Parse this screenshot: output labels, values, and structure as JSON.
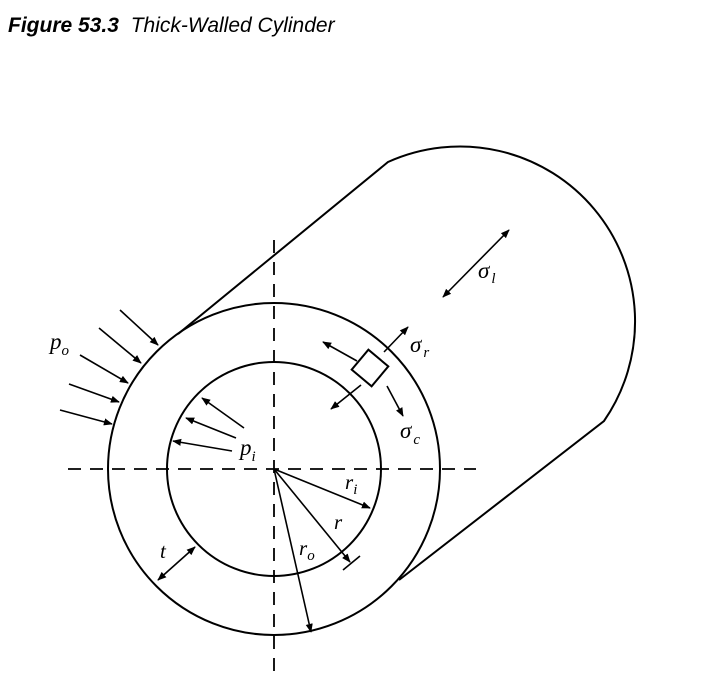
{
  "figure": {
    "number": "Figure 53.3",
    "title": "Thick-Walled Cylinder"
  },
  "labels": {
    "p_o": {
      "main": "p",
      "sub": "o"
    },
    "p_i": {
      "main": "p",
      "sub": "i"
    },
    "sigma_r": {
      "main": "σ",
      "sub": "r"
    },
    "sigma_c": {
      "main": "σ",
      "sub": "c"
    },
    "sigma_l": {
      "main": "σ",
      "sub": "l"
    },
    "r_i": {
      "main": "r",
      "sub": "i"
    },
    "r": {
      "main": "r"
    },
    "r_o": {
      "main": "r",
      "sub": "o"
    },
    "t": {
      "main": "t"
    }
  }
}
